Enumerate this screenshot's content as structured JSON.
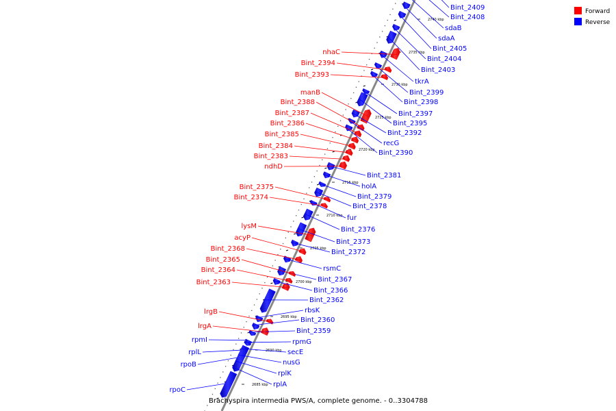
{
  "caption": "Brachyspira intermedia PWS/A, complete genome. - 0..3304788",
  "colors": {
    "forward": "#ff0000",
    "reverse": "#0000ff",
    "backbone": "#888888"
  },
  "legend": [
    {
      "strand": "forward",
      "label": "Forward"
    },
    {
      "strand": "reverse",
      "label": "Reverse"
    }
  ],
  "ticks": [
    "2740 kbp",
    "2735 kbp",
    "2730 kbp",
    "2725 kbp",
    "2720 kbp",
    "2715 kbp",
    "2710 kbp",
    "2705 kbp",
    "2700 kbp",
    "2695 kbp",
    "2690 kbp",
    "2685 kbp"
  ],
  "genes": [
    {
      "name": "Bint_2409",
      "strand": "reverse"
    },
    {
      "name": "Bint_2408",
      "strand": "reverse"
    },
    {
      "name": "sdaB",
      "strand": "reverse"
    },
    {
      "name": "sdaA",
      "strand": "reverse"
    },
    {
      "name": "Bint_2405",
      "strand": "reverse"
    },
    {
      "name": "Bint_2404",
      "strand": "reverse"
    },
    {
      "name": "Bint_2403",
      "strand": "reverse"
    },
    {
      "name": "tkrA",
      "strand": "reverse"
    },
    {
      "name": "Bint_2399",
      "strand": "reverse"
    },
    {
      "name": "Bint_2398",
      "strand": "reverse"
    },
    {
      "name": "Bint_2397",
      "strand": "reverse"
    },
    {
      "name": "Bint_2395",
      "strand": "reverse"
    },
    {
      "name": "Bint_2392",
      "strand": "reverse"
    },
    {
      "name": "recG",
      "strand": "reverse"
    },
    {
      "name": "Bint_2390",
      "strand": "reverse"
    },
    {
      "name": "Bint_2381",
      "strand": "reverse"
    },
    {
      "name": "holA",
      "strand": "reverse"
    },
    {
      "name": "Bint_2379",
      "strand": "reverse"
    },
    {
      "name": "Bint_2378",
      "strand": "reverse"
    },
    {
      "name": "fur",
      "strand": "reverse"
    },
    {
      "name": "Bint_2376",
      "strand": "reverse"
    },
    {
      "name": "Bint_2373",
      "strand": "reverse"
    },
    {
      "name": "Bint_2372",
      "strand": "reverse"
    },
    {
      "name": "rsmC",
      "strand": "reverse"
    },
    {
      "name": "Bint_2367",
      "strand": "reverse"
    },
    {
      "name": "Bint_2366",
      "strand": "reverse"
    },
    {
      "name": "Bint_2362",
      "strand": "reverse"
    },
    {
      "name": "rbsK",
      "strand": "reverse"
    },
    {
      "name": "Bint_2360",
      "strand": "reverse"
    },
    {
      "name": "Bint_2359",
      "strand": "reverse"
    },
    {
      "name": "rpmG",
      "strand": "reverse"
    },
    {
      "name": "secE",
      "strand": "reverse"
    },
    {
      "name": "nusG",
      "strand": "reverse"
    },
    {
      "name": "rplK",
      "strand": "reverse"
    },
    {
      "name": "rplA",
      "strand": "reverse"
    },
    {
      "name": "nhaC",
      "strand": "forward"
    },
    {
      "name": "Bint_2394",
      "strand": "forward"
    },
    {
      "name": "Bint_2393",
      "strand": "forward"
    },
    {
      "name": "manB",
      "strand": "forward"
    },
    {
      "name": "Bint_2388",
      "strand": "forward"
    },
    {
      "name": "Bint_2387",
      "strand": "forward"
    },
    {
      "name": "Bint_2386",
      "strand": "forward"
    },
    {
      "name": "Bint_2385",
      "strand": "forward"
    },
    {
      "name": "Bint_2384",
      "strand": "forward"
    },
    {
      "name": "Bint_2383",
      "strand": "forward"
    },
    {
      "name": "ndhD",
      "strand": "forward"
    },
    {
      "name": "Bint_2375",
      "strand": "forward"
    },
    {
      "name": "Bint_2374",
      "strand": "forward"
    },
    {
      "name": "lysM",
      "strand": "forward"
    },
    {
      "name": "acyP",
      "strand": "forward"
    },
    {
      "name": "Bint_2368",
      "strand": "forward"
    },
    {
      "name": "Bint_2365",
      "strand": "forward"
    },
    {
      "name": "Bint_2364",
      "strand": "forward"
    },
    {
      "name": "Bint_2363",
      "strand": "forward"
    },
    {
      "name": "lrgB",
      "strand": "forward"
    },
    {
      "name": "lrgA",
      "strand": "forward"
    },
    {
      "name": "rpmI",
      "strand": "reverse"
    },
    {
      "name": "rplL",
      "strand": "reverse"
    },
    {
      "name": "rpoB",
      "strand": "reverse"
    },
    {
      "name": "rpoC",
      "strand": "reverse"
    }
  ]
}
